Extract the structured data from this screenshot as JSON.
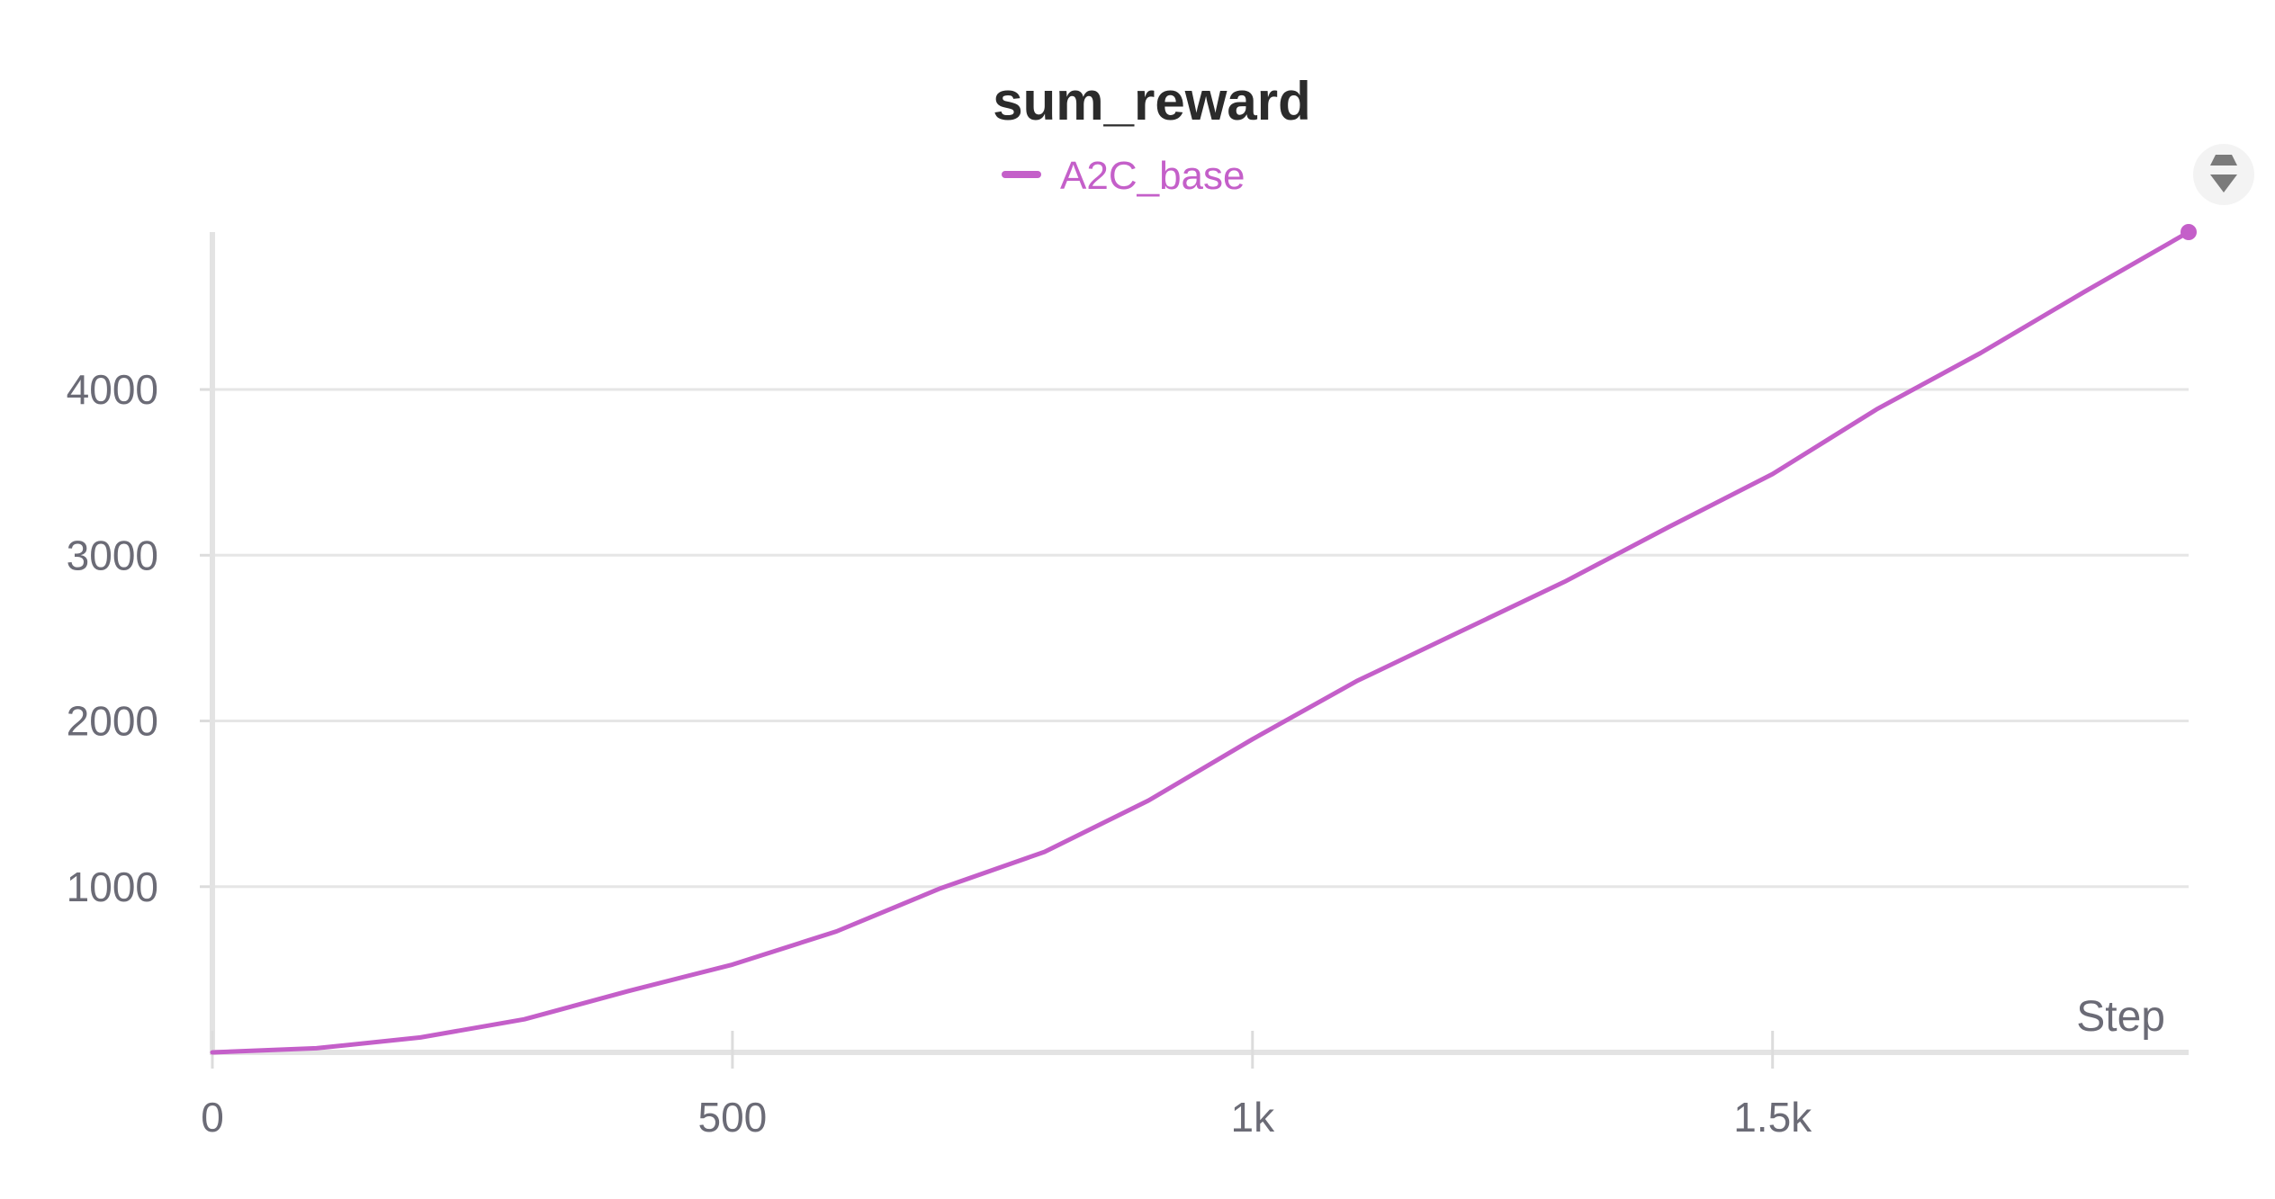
{
  "chart_data": {
    "type": "line",
    "title": "sum_reward",
    "xlabel": "Step",
    "ylabel": "",
    "xlim": [
      0,
      1900
    ],
    "ylim": [
      0,
      4950
    ],
    "x_ticks": [
      {
        "value": 0,
        "label": "0"
      },
      {
        "value": 500,
        "label": "500"
      },
      {
        "value": 1000,
        "label": "1k"
      },
      {
        "value": 1500,
        "label": "1.5k"
      }
    ],
    "y_ticks": [
      {
        "value": 1000,
        "label": "1000"
      },
      {
        "value": 2000,
        "label": "2000"
      },
      {
        "value": 3000,
        "label": "3000"
      },
      {
        "value": 4000,
        "label": "4000"
      }
    ],
    "grid": true,
    "legend_position": "top-center",
    "series": [
      {
        "name": "A2C_base",
        "color": "#c45fc9",
        "x": [
          0,
          100,
          200,
          300,
          400,
          500,
          600,
          700,
          800,
          900,
          1000,
          1100,
          1200,
          1300,
          1400,
          1500,
          1600,
          1700,
          1800,
          1900
        ],
        "y": [
          0,
          25,
          90,
          200,
          370,
          530,
          730,
          990,
          1210,
          1520,
          1890,
          2240,
          2540,
          2840,
          3170,
          3490,
          3880,
          4220,
          4590,
          4950
        ]
      }
    ]
  },
  "toolbar": {
    "icon_color": "#7a7a7a"
  }
}
